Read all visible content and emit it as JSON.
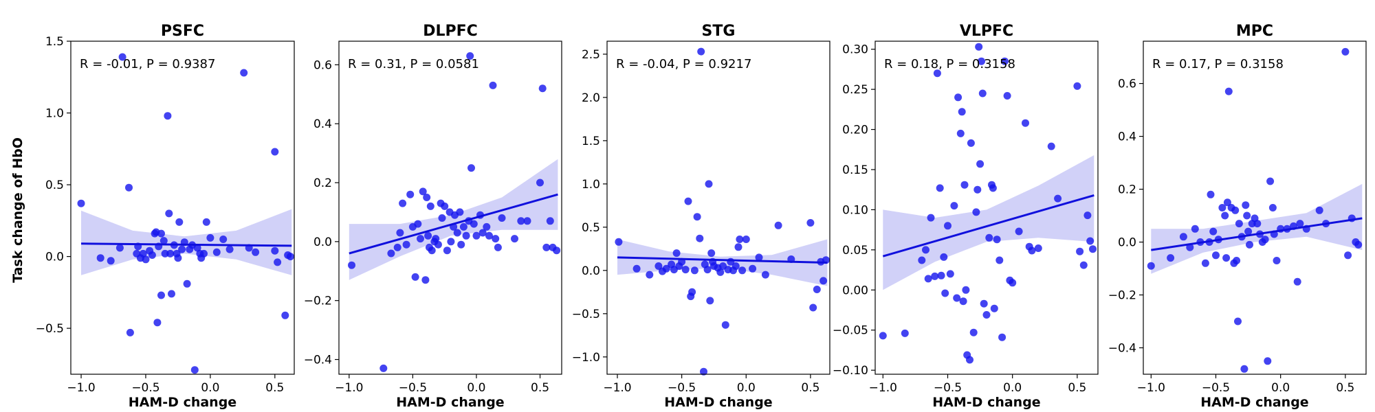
{
  "figure": {
    "ylabel": "Task change of HbO",
    "xlabel": "HAM-D change"
  },
  "chart_data": [
    {
      "type": "scatter",
      "title": "PSFC",
      "xlabel": "HAM-D change",
      "ylabel": "Task change of HbO",
      "xlim": [
        -1.08,
        0.65
      ],
      "ylim": [
        -0.82,
        1.5
      ],
      "xticks": [
        -1.0,
        -0.5,
        0.0,
        0.5
      ],
      "xtick_labels": [
        "−1.0",
        "−0.5",
        "0.0",
        "0.5"
      ],
      "yticks": [
        -0.5,
        0.0,
        0.5,
        1.0,
        1.5
      ],
      "ytick_labels": [
        "−0.5",
        "0.0",
        "0.5",
        "1.0",
        "1.5"
      ],
      "annotation": "R = -0.01, P = 0.9387",
      "regression": {
        "x": [
          -1.0,
          0.63
        ],
        "y": [
          0.09,
          0.075
        ]
      },
      "ci_band": {
        "x": [
          -1.0,
          -0.6,
          -0.2,
          0.2,
          0.63
        ],
        "lower": [
          -0.13,
          -0.02,
          0.02,
          -0.02,
          -0.13
        ],
        "upper": [
          0.32,
          0.18,
          0.14,
          0.18,
          0.33
        ]
      },
      "points": {
        "x": [
          -1.0,
          -0.85,
          -0.77,
          -0.7,
          -0.68,
          -0.63,
          -0.62,
          -0.57,
          -0.56,
          -0.54,
          -0.52,
          -0.5,
          -0.47,
          -0.45,
          -0.43,
          -0.42,
          -0.41,
          -0.4,
          -0.38,
          -0.38,
          -0.36,
          -0.35,
          -0.33,
          -0.32,
          -0.31,
          -0.3,
          -0.28,
          -0.26,
          -0.25,
          -0.24,
          -0.22,
          -0.2,
          -0.18,
          -0.16,
          -0.14,
          -0.12,
          -0.1,
          -0.08,
          -0.07,
          -0.05,
          -0.03,
          0.0,
          0.05,
          0.1,
          0.15,
          0.26,
          0.3,
          0.35,
          0.5,
          0.5,
          0.52,
          0.58,
          0.6,
          0.62
        ],
        "y": [
          0.37,
          -0.01,
          -0.03,
          0.06,
          1.39,
          0.48,
          -0.53,
          0.02,
          0.07,
          -0.01,
          0.02,
          -0.02,
          0.04,
          0.01,
          0.16,
          0.17,
          -0.46,
          0.07,
          0.16,
          -0.27,
          0.11,
          0.02,
          0.98,
          0.3,
          0.02,
          -0.26,
          0.08,
          0.02,
          -0.01,
          0.24,
          0.05,
          0.1,
          -0.19,
          0.05,
          0.08,
          -0.79,
          0.06,
          0.02,
          -0.01,
          0.02,
          0.24,
          0.13,
          0.03,
          0.12,
          0.05,
          1.28,
          0.06,
          0.03,
          0.04,
          0.73,
          -0.04,
          -0.41,
          0.01,
          0.0
        ]
      }
    },
    {
      "type": "scatter",
      "title": "DLPFC",
      "xlabel": "HAM-D change",
      "ylabel": "",
      "xlim": [
        -1.08,
        0.67
      ],
      "ylim": [
        -0.45,
        0.68
      ],
      "xticks": [
        -1.0,
        -0.5,
        0.0,
        0.5
      ],
      "xtick_labels": [
        "−1.0",
        "−0.5",
        "0.0",
        "0.5"
      ],
      "yticks": [
        -0.4,
        -0.2,
        0.0,
        0.2,
        0.4,
        0.6
      ],
      "ytick_labels": [
        "−0.4",
        "−0.2",
        "0.0",
        "0.2",
        "0.4",
        "0.6"
      ],
      "annotation": "R = 0.31, P = 0.0581",
      "regression": {
        "x": [
          -1.0,
          0.64
        ],
        "y": [
          -0.04,
          0.16
        ]
      },
      "ci_band": {
        "x": [
          -1.0,
          -0.6,
          -0.2,
          0.2,
          0.64
        ],
        "lower": [
          -0.13,
          -0.05,
          0.02,
          0.04,
          0.04
        ],
        "upper": [
          0.06,
          0.06,
          0.09,
          0.15,
          0.28
        ]
      },
      "points": {
        "x": [
          -0.98,
          -0.73,
          -0.67,
          -0.62,
          -0.6,
          -0.58,
          -0.55,
          -0.52,
          -0.5,
          -0.48,
          -0.46,
          -0.44,
          -0.42,
          -0.4,
          -0.39,
          -0.38,
          -0.37,
          -0.36,
          -0.35,
          -0.33,
          -0.32,
          -0.3,
          -0.28,
          -0.27,
          -0.25,
          -0.23,
          -0.21,
          -0.2,
          -0.18,
          -0.17,
          -0.15,
          -0.13,
          -0.12,
          -0.1,
          -0.08,
          -0.06,
          -0.05,
          -0.04,
          -0.02,
          0.0,
          0.03,
          0.05,
          0.08,
          0.1,
          0.13,
          0.15,
          0.17,
          0.2,
          0.3,
          0.35,
          0.4,
          0.5,
          0.52,
          0.55,
          0.58,
          0.6,
          0.63
        ],
        "y": [
          -0.08,
          -0.43,
          -0.04,
          -0.02,
          0.03,
          0.13,
          -0.01,
          0.16,
          0.05,
          -0.12,
          0.06,
          0.01,
          0.17,
          -0.13,
          0.15,
          0.02,
          -0.02,
          0.12,
          -0.03,
          0.0,
          0.01,
          -0.01,
          0.13,
          0.08,
          0.12,
          -0.03,
          0.1,
          0.0,
          0.05,
          0.09,
          0.03,
          0.1,
          -0.01,
          0.05,
          0.02,
          0.07,
          0.63,
          0.25,
          0.06,
          0.02,
          0.09,
          0.03,
          0.05,
          0.02,
          0.53,
          0.01,
          -0.02,
          0.08,
          0.01,
          0.07,
          0.07,
          0.2,
          0.52,
          -0.02,
          0.07,
          -0.02,
          -0.03
        ]
      }
    },
    {
      "type": "scatter",
      "title": "STG",
      "xlabel": "HAM-D change",
      "ylabel": "",
      "xlim": [
        -1.08,
        0.65
      ],
      "ylim": [
        -1.2,
        2.65
      ],
      "xticks": [
        -1.0,
        -0.5,
        0.0,
        0.5
      ],
      "xtick_labels": [
        "−1.0",
        "−0.5",
        "0.0",
        "0.5"
      ],
      "yticks": [
        -1.0,
        -0.5,
        0.0,
        0.5,
        1.0,
        1.5,
        2.0,
        2.5
      ],
      "ytick_labels": [
        "−1.0",
        "−0.5",
        "0.0",
        "0.5",
        "1.0",
        "1.5",
        "2.0",
        "2.5"
      ],
      "annotation": "R = -0.04, P = 0.9217",
      "regression": {
        "x": [
          -1.0,
          0.63
        ],
        "y": [
          0.15,
          0.09
        ]
      },
      "ci_band": {
        "x": [
          -1.0,
          -0.6,
          -0.2,
          0.2,
          0.63
        ],
        "lower": [
          -0.05,
          0.0,
          0.03,
          -0.05,
          -0.18
        ],
        "upper": [
          0.36,
          0.22,
          0.16,
          0.18,
          0.36
        ]
      },
      "points": {
        "x": [
          -0.99,
          -0.85,
          -0.75,
          -0.68,
          -0.65,
          -0.62,
          -0.58,
          -0.56,
          -0.54,
          -0.52,
          -0.5,
          -0.47,
          -0.45,
          -0.43,
          -0.42,
          -0.4,
          -0.38,
          -0.36,
          -0.35,
          -0.33,
          -0.32,
          -0.3,
          -0.29,
          -0.28,
          -0.27,
          -0.26,
          -0.25,
          -0.22,
          -0.2,
          -0.18,
          -0.16,
          -0.14,
          -0.12,
          -0.1,
          -0.08,
          -0.06,
          -0.05,
          -0.03,
          0.0,
          0.05,
          0.1,
          0.15,
          0.25,
          0.35,
          0.5,
          0.52,
          0.55,
          0.58,
          0.6,
          0.62
        ],
        "y": [
          0.33,
          0.02,
          -0.05,
          0.05,
          -0.01,
          0.02,
          0.07,
          0.01,
          0.2,
          0.05,
          0.1,
          0.01,
          0.8,
          -0.3,
          -0.25,
          0.0,
          0.62,
          0.37,
          2.53,
          -1.17,
          0.07,
          0.01,
          1.0,
          -0.35,
          0.2,
          0.1,
          0.05,
          0.03,
          -0.02,
          0.05,
          -0.63,
          0.01,
          0.1,
          0.0,
          0.05,
          0.27,
          0.36,
          0.0,
          0.36,
          0.02,
          0.15,
          -0.05,
          0.52,
          0.13,
          0.55,
          -0.43,
          -0.22,
          0.1,
          -0.12,
          0.12
        ]
      }
    },
    {
      "type": "scatter",
      "title": "VLPFC",
      "xlabel": "HAM-D change",
      "ylabel": "",
      "xlim": [
        -1.06,
        0.66
      ],
      "ylim": [
        -0.105,
        0.31
      ],
      "xticks": [
        -1.0,
        -0.5,
        0.0,
        0.5
      ],
      "xtick_labels": [
        "−1.0",
        "−0.5",
        "0.0",
        "0.5"
      ],
      "yticks": [
        -0.1,
        -0.05,
        0.0,
        0.05,
        0.1,
        0.15,
        0.2,
        0.25,
        0.3
      ],
      "ytick_labels": [
        "−0.10",
        "−0.05",
        "0.00",
        "0.05",
        "0.10",
        "0.15",
        "0.20",
        "0.25",
        "0.30"
      ],
      "annotation": "R = 0.18, P = 0.3158",
      "regression": {
        "x": [
          -1.0,
          0.63
        ],
        "y": [
          0.042,
          0.118
        ]
      },
      "ci_band": {
        "x": [
          -1.0,
          -0.6,
          -0.2,
          0.2,
          0.63
        ],
        "lower": [
          0.0,
          0.035,
          0.06,
          0.065,
          0.06
        ],
        "upper": [
          0.1,
          0.09,
          0.1,
          0.13,
          0.168
        ]
      },
      "points": {
        "x": [
          -1.0,
          -0.83,
          -0.7,
          -0.67,
          -0.65,
          -0.63,
          -0.6,
          -0.58,
          -0.56,
          -0.55,
          -0.53,
          -0.52,
          -0.5,
          -0.48,
          -0.45,
          -0.43,
          -0.42,
          -0.4,
          -0.39,
          -0.38,
          -0.37,
          -0.36,
          -0.35,
          -0.33,
          -0.32,
          -0.3,
          -0.28,
          -0.27,
          -0.26,
          -0.25,
          -0.24,
          -0.23,
          -0.22,
          -0.2,
          -0.18,
          -0.16,
          -0.15,
          -0.14,
          -0.12,
          -0.1,
          -0.08,
          -0.06,
          -0.04,
          -0.02,
          0.0,
          0.05,
          0.1,
          0.13,
          0.15,
          0.2,
          0.3,
          0.35,
          0.5,
          0.52,
          0.55,
          0.58,
          0.6,
          0.62
        ],
        "y": [
          -0.057,
          -0.054,
          0.037,
          0.05,
          0.014,
          0.09,
          0.017,
          0.27,
          0.127,
          0.018,
          0.041,
          -0.004,
          0.08,
          0.02,
          0.105,
          -0.01,
          0.24,
          0.195,
          0.222,
          -0.014,
          0.131,
          0.0,
          -0.081,
          -0.087,
          0.183,
          -0.053,
          0.097,
          0.125,
          0.303,
          0.157,
          0.285,
          0.245,
          -0.017,
          -0.031,
          0.065,
          0.131,
          0.127,
          -0.023,
          0.063,
          0.037,
          -0.059,
          0.285,
          0.242,
          0.012,
          0.009,
          0.073,
          0.208,
          0.054,
          0.049,
          0.052,
          0.179,
          0.114,
          0.254,
          0.048,
          0.031,
          0.093,
          0.061,
          0.051
        ]
      }
    },
    {
      "type": "scatter",
      "title": "MPC",
      "xlabel": "HAM-D change",
      "ylabel": "",
      "xlim": [
        -1.06,
        0.66
      ],
      "ylim": [
        -0.5,
        0.76
      ],
      "xticks": [
        -1.0,
        -0.5,
        0.0,
        0.5
      ],
      "xtick_labels": [
        "−1.0",
        "−0.5",
        "0.0",
        "0.5"
      ],
      "yticks": [
        -0.4,
        -0.2,
        0.0,
        0.2,
        0.4,
        0.6
      ],
      "ytick_labels": [
        "−0.4",
        "−0.2",
        "0.0",
        "0.2",
        "0.4",
        "0.6"
      ],
      "annotation": "R = 0.17, P = 0.3158",
      "regression": {
        "x": [
          -1.0,
          0.63
        ],
        "y": [
          -0.03,
          0.09
        ]
      },
      "ci_band": {
        "x": [
          -1.0,
          -0.6,
          -0.2,
          0.2,
          0.63
        ],
        "lower": [
          -0.12,
          -0.04,
          0.0,
          0.02,
          -0.03
        ],
        "upper": [
          0.05,
          0.05,
          0.08,
          0.11,
          0.22
        ]
      },
      "points": {
        "x": [
          -1.0,
          -0.85,
          -0.75,
          -0.7,
          -0.66,
          -0.62,
          -0.58,
          -0.55,
          -0.54,
          -0.52,
          -0.5,
          -0.48,
          -0.45,
          -0.43,
          -0.42,
          -0.41,
          -0.4,
          -0.38,
          -0.36,
          -0.35,
          -0.34,
          -0.33,
          -0.32,
          -0.3,
          -0.28,
          -0.27,
          -0.26,
          -0.25,
          -0.24,
          -0.22,
          -0.2,
          -0.18,
          -0.16,
          -0.14,
          -0.12,
          -0.1,
          -0.08,
          -0.06,
          -0.05,
          -0.03,
          0.0,
          0.05,
          0.1,
          0.13,
          0.15,
          0.2,
          0.3,
          0.35,
          0.5,
          0.52,
          0.55,
          0.58,
          0.6
        ],
        "y": [
          -0.09,
          -0.06,
          0.02,
          -0.02,
          0.05,
          0.0,
          -0.08,
          0.0,
          0.18,
          0.04,
          -0.05,
          0.01,
          0.13,
          0.1,
          -0.06,
          0.15,
          0.57,
          0.13,
          -0.08,
          0.12,
          -0.07,
          -0.3,
          0.07,
          0.02,
          -0.48,
          0.14,
          0.1,
          0.04,
          -0.01,
          0.07,
          0.09,
          0.07,
          0.03,
          0.0,
          0.01,
          -0.45,
          0.23,
          0.13,
          0.03,
          -0.07,
          0.05,
          0.05,
          0.06,
          -0.15,
          0.07,
          0.05,
          0.12,
          0.07,
          0.72,
          -0.05,
          0.09,
          0.0,
          -0.01
        ]
      }
    }
  ]
}
